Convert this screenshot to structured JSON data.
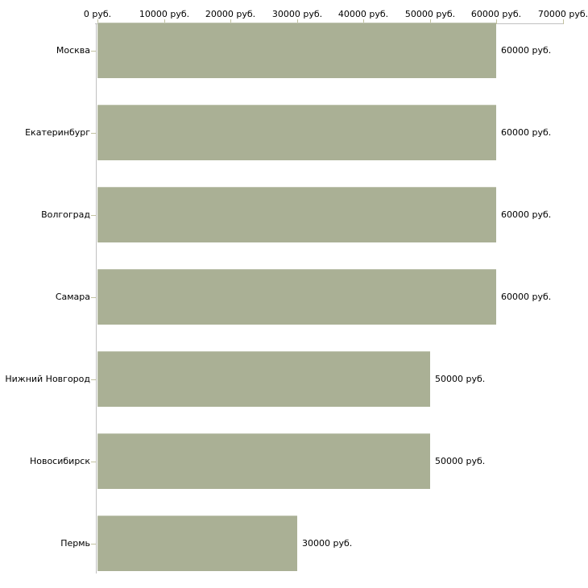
{
  "chart_data": {
    "type": "bar",
    "orientation": "horizontal",
    "title": "",
    "xlabel": "",
    "ylabel": "",
    "unit_suffix": " руб.",
    "categories": [
      "Москва",
      "Екатеринбург",
      "Волгоград",
      "Самара",
      "Нижний Новгород",
      "Новосибирск",
      "Пермь"
    ],
    "values": [
      60000,
      60000,
      60000,
      60000,
      50000,
      50000,
      30000
    ],
    "value_labels": [
      "60000 руб.",
      "60000 руб.",
      "60000 руб.",
      "60000 руб.",
      "50000 руб.",
      "50000 руб.",
      "30000 руб."
    ],
    "x_ticks": [
      0,
      10000,
      20000,
      30000,
      40000,
      50000,
      60000,
      70000
    ],
    "x_tick_labels": [
      "0 руб.",
      "10000 руб.",
      "20000 руб.",
      "30000 руб.",
      "40000 руб.",
      "50000 руб.",
      "60000 руб.",
      "70000 руб."
    ],
    "xlim": [
      0,
      70000
    ],
    "grid": false,
    "legend": false,
    "colors": {
      "bar_fill": "#aab095",
      "axis_line": "#c0c0c0",
      "tick_mark": "#c2c2a0",
      "text": "#000000",
      "background": "#ffffff"
    }
  }
}
